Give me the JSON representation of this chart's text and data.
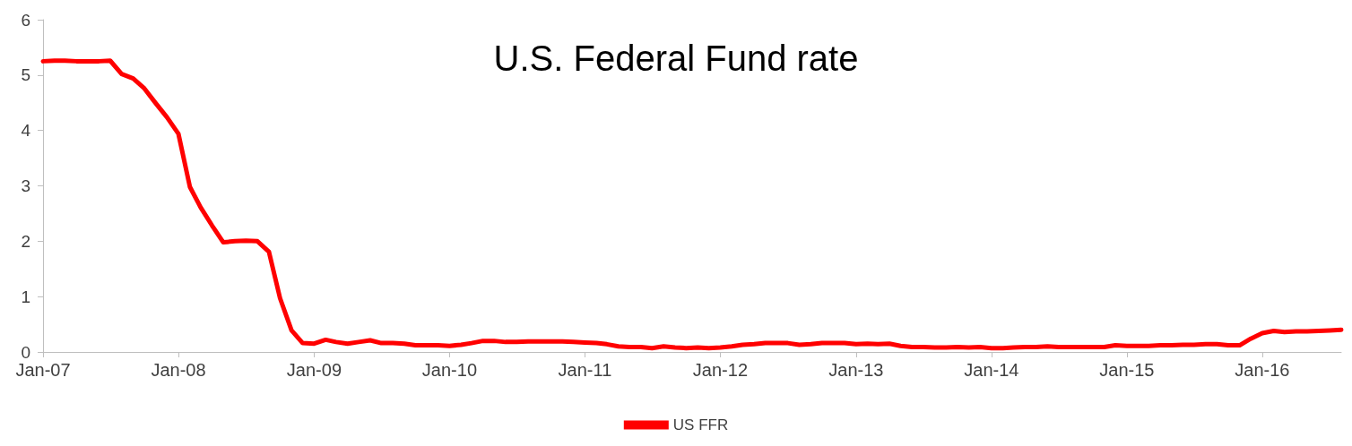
{
  "chart_data": {
    "type": "line",
    "title": "U.S. Federal Fund rate",
    "x": [
      "2007-01",
      "2007-02",
      "2007-03",
      "2007-04",
      "2007-05",
      "2007-06",
      "2007-07",
      "2007-08",
      "2007-09",
      "2007-10",
      "2007-11",
      "2007-12",
      "2008-01",
      "2008-02",
      "2008-03",
      "2008-04",
      "2008-05",
      "2008-06",
      "2008-07",
      "2008-08",
      "2008-09",
      "2008-10",
      "2008-11",
      "2008-12",
      "2009-01",
      "2009-02",
      "2009-03",
      "2009-04",
      "2009-05",
      "2009-06",
      "2009-07",
      "2009-08",
      "2009-09",
      "2009-10",
      "2009-11",
      "2009-12",
      "2010-01",
      "2010-02",
      "2010-03",
      "2010-04",
      "2010-05",
      "2010-06",
      "2010-07",
      "2010-08",
      "2010-09",
      "2010-10",
      "2010-11",
      "2010-12",
      "2011-01",
      "2011-02",
      "2011-03",
      "2011-04",
      "2011-05",
      "2011-06",
      "2011-07",
      "2011-08",
      "2011-09",
      "2011-10",
      "2011-11",
      "2011-12",
      "2012-01",
      "2012-02",
      "2012-03",
      "2012-04",
      "2012-05",
      "2012-06",
      "2012-07",
      "2012-08",
      "2012-09",
      "2012-10",
      "2012-11",
      "2012-12",
      "2013-01",
      "2013-02",
      "2013-03",
      "2013-04",
      "2013-05",
      "2013-06",
      "2013-07",
      "2013-08",
      "2013-09",
      "2013-10",
      "2013-11",
      "2013-12",
      "2014-01",
      "2014-02",
      "2014-03",
      "2014-04",
      "2014-05",
      "2014-06",
      "2014-07",
      "2014-08",
      "2014-09",
      "2014-10",
      "2014-11",
      "2014-12",
      "2015-01",
      "2015-02",
      "2015-03",
      "2015-04",
      "2015-05",
      "2015-06",
      "2015-07",
      "2015-08",
      "2015-09",
      "2015-10",
      "2015-11",
      "2015-12",
      "2016-01",
      "2016-02",
      "2016-03",
      "2016-04",
      "2016-05",
      "2016-06",
      "2016-07",
      "2016-08"
    ],
    "series": [
      {
        "name": "US FFR",
        "color": "#ff0000",
        "values": [
          5.25,
          5.26,
          5.26,
          5.25,
          5.25,
          5.25,
          5.26,
          5.02,
          4.94,
          4.76,
          4.49,
          4.24,
          3.94,
          2.98,
          2.61,
          2.28,
          1.98,
          2.0,
          2.01,
          2.0,
          1.81,
          0.97,
          0.39,
          0.16,
          0.15,
          0.22,
          0.18,
          0.15,
          0.18,
          0.21,
          0.16,
          0.16,
          0.15,
          0.12,
          0.12,
          0.12,
          0.11,
          0.13,
          0.16,
          0.2,
          0.2,
          0.18,
          0.18,
          0.19,
          0.19,
          0.19,
          0.19,
          0.18,
          0.17,
          0.16,
          0.14,
          0.1,
          0.09,
          0.09,
          0.07,
          0.1,
          0.08,
          0.07,
          0.08,
          0.07,
          0.08,
          0.1,
          0.13,
          0.14,
          0.16,
          0.16,
          0.16,
          0.13,
          0.14,
          0.16,
          0.16,
          0.16,
          0.14,
          0.15,
          0.14,
          0.15,
          0.11,
          0.09,
          0.09,
          0.08,
          0.08,
          0.09,
          0.08,
          0.09,
          0.07,
          0.07,
          0.08,
          0.09,
          0.09,
          0.1,
          0.09,
          0.09,
          0.09,
          0.09,
          0.09,
          0.12,
          0.11,
          0.11,
          0.11,
          0.12,
          0.12,
          0.13,
          0.13,
          0.14,
          0.14,
          0.12,
          0.12,
          0.24,
          0.34,
          0.38,
          0.36,
          0.37,
          0.37,
          0.38,
          0.39,
          0.4
        ]
      }
    ],
    "xlim": [
      "2007-01",
      "2016-08"
    ],
    "xticks": [
      {
        "value": "2007-01",
        "label": "Jan-07"
      },
      {
        "value": "2008-01",
        "label": "Jan-08"
      },
      {
        "value": "2009-01",
        "label": "Jan-09"
      },
      {
        "value": "2010-01",
        "label": "Jan-10"
      },
      {
        "value": "2011-01",
        "label": "Jan-11"
      },
      {
        "value": "2012-01",
        "label": "Jan-12"
      },
      {
        "value": "2013-01",
        "label": "Jan-13"
      },
      {
        "value": "2014-01",
        "label": "Jan-14"
      },
      {
        "value": "2015-01",
        "label": "Jan-15"
      },
      {
        "value": "2016-01",
        "label": "Jan-16"
      }
    ],
    "ylim": [
      0,
      6
    ],
    "yticks": [
      0,
      1,
      2,
      3,
      4,
      5,
      6
    ],
    "grid": false,
    "legend": "bottom",
    "marker": "none",
    "line_style": "solid"
  }
}
